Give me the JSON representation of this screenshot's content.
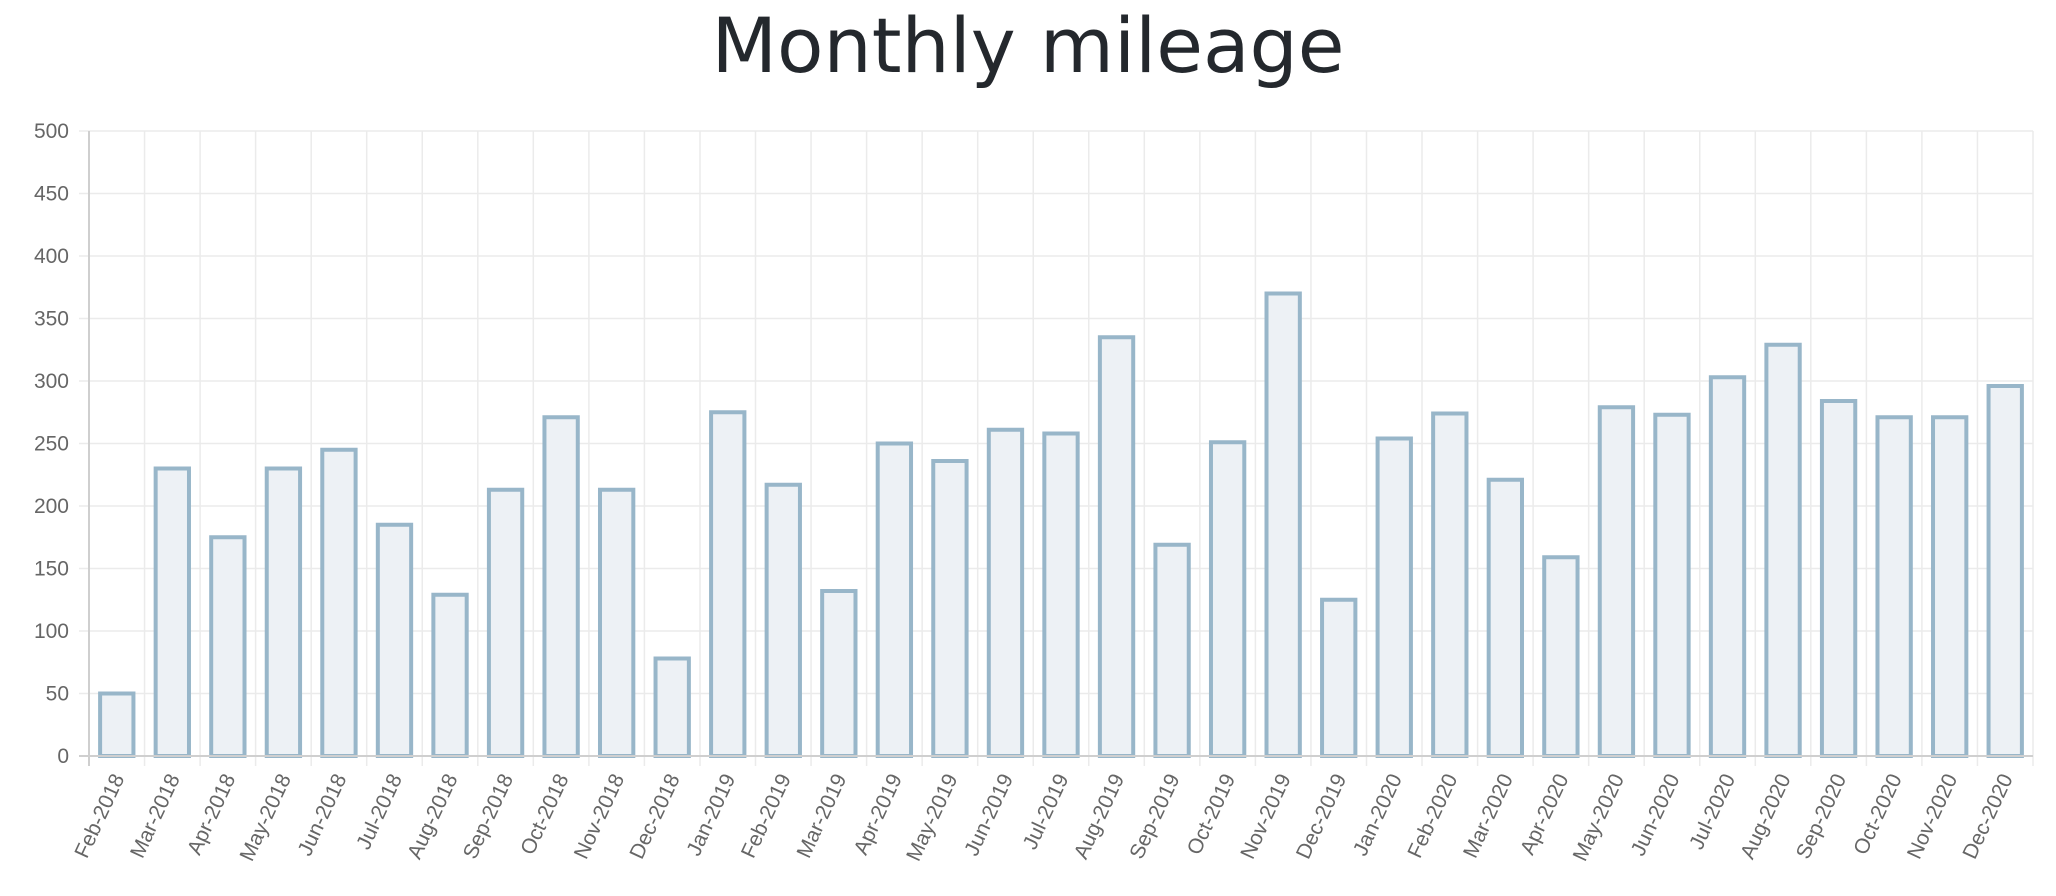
{
  "chart_data": {
    "type": "bar",
    "title": "Monthly mileage",
    "xlabel": "",
    "ylabel": "",
    "ylim": [
      0,
      500
    ],
    "yticks": [
      "0",
      "50",
      "100",
      "150",
      "200",
      "250",
      "300",
      "350",
      "400",
      "450",
      "500"
    ],
    "grid": true,
    "legend": "none",
    "bar_fill": "#edf1f5",
    "bar_stroke": "#98b6c9",
    "categories": [
      "Feb-2018",
      "Mar-2018",
      "Apr-2018",
      "May-2018",
      "Jun-2018",
      "Jul-2018",
      "Aug-2018",
      "Sep-2018",
      "Oct-2018",
      "Nov-2018",
      "Dec-2018",
      "Jan-2019",
      "Feb-2019",
      "Mar-2019",
      "Apr-2019",
      "May-2019",
      "Jun-2019",
      "Jul-2019",
      "Aug-2019",
      "Sep-2019",
      "Oct-2019",
      "Nov-2019",
      "Dec-2019",
      "Jan-2020",
      "Feb-2020",
      "Mar-2020",
      "Apr-2020",
      "May-2020",
      "Jun-2020",
      "Jul-2020",
      "Aug-2020",
      "Sep-2020",
      "Oct-2020",
      "Nov-2020",
      "Dec-2020"
    ],
    "values": [
      50,
      230,
      175,
      230,
      245,
      185,
      129,
      213,
      271,
      213,
      78,
      275,
      217,
      132,
      250,
      236,
      261,
      258,
      335,
      169,
      251,
      370,
      125,
      254,
      274,
      221,
      159,
      279,
      273,
      303,
      329,
      284,
      271,
      271,
      296
    ]
  }
}
